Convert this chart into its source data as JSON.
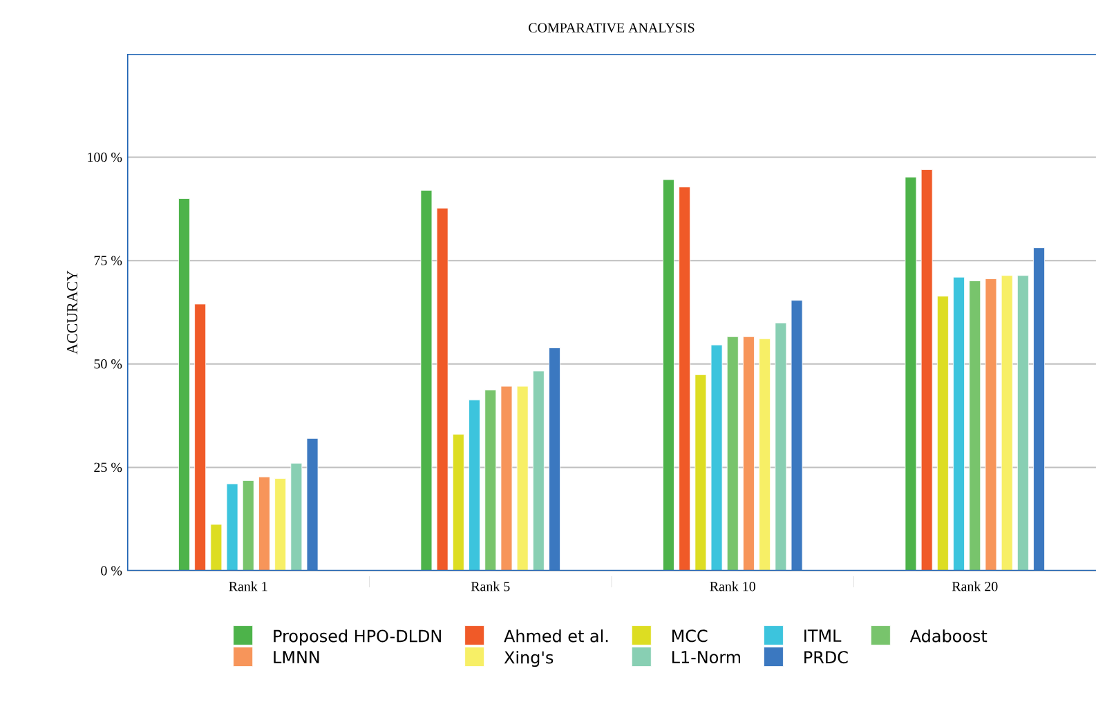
{
  "chart_data": {
    "type": "bar",
    "title": "COMPARATIVE ANALYSIS",
    "ylabel": "ACCURACY",
    "categories": [
      "Rank 1",
      "Rank 5",
      "Rank 10",
      "Rank 20"
    ],
    "series": [
      {
        "name": "Proposed HPO-DLDN",
        "color": "#4db34a",
        "values": [
          90,
          92,
          94.6,
          95.2
        ]
      },
      {
        "name": "Ahmed et al.",
        "color": "#f05a28",
        "values": [
          64.5,
          87.7,
          92.8,
          97
        ]
      },
      {
        "name": "MCC",
        "color": "#dddd22",
        "values": [
          11.2,
          33,
          47.4,
          66.4
        ]
      },
      {
        "name": "ITML",
        "color": "#3cc4dd",
        "values": [
          21,
          41.3,
          54.6,
          71
        ]
      },
      {
        "name": "Adaboost",
        "color": "#78c46c",
        "values": [
          21.8,
          43.7,
          56.6,
          70.1
        ]
      },
      {
        "name": "LMNN",
        "color": "#f7955a",
        "values": [
          22.7,
          44.6,
          56.6,
          70.6
        ]
      },
      {
        "name": "Xing's",
        "color": "#f7ef66",
        "values": [
          22.3,
          44.6,
          56.1,
          71.4
        ]
      },
      {
        "name": "L1-Norm",
        "color": "#88cfb3",
        "values": [
          26,
          48.3,
          59.9,
          71.4
        ]
      },
      {
        "name": "PRDC",
        "color": "#3b78c0",
        "values": [
          32,
          53.9,
          65.4,
          78.1
        ]
      }
    ],
    "ylim": [
      0,
      125
    ],
    "yticks": [
      {
        "value": 0,
        "label": "0 %"
      },
      {
        "value": 25,
        "label": "25 %"
      },
      {
        "value": 50,
        "label": "50 %"
      },
      {
        "value": 75,
        "label": "75 %"
      },
      {
        "value": 100,
        "label": "100 %"
      }
    ],
    "grid": "y",
    "legend": "bottom"
  }
}
